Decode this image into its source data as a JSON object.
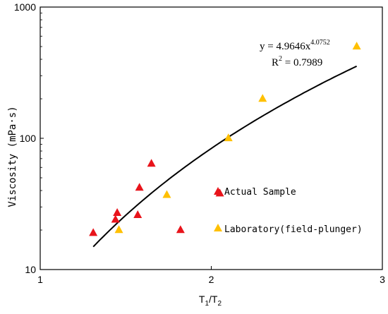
{
  "chart_data": {
    "type": "scatter",
    "xlabel": "T1/T2",
    "xlabel_main": "T",
    "xlabel_sub1": "1",
    "xlabel_slash": "/T",
    "xlabel_sub2": "2",
    "ylabel": "Viscosity (mPa·s)",
    "x_scale": "linear",
    "y_scale": "log",
    "xlim": [
      1,
      3
    ],
    "ylim": [
      10,
      1000
    ],
    "x_ticks": [
      "1",
      "2",
      "3"
    ],
    "y_ticks": [
      "10",
      "100",
      "1000"
    ],
    "grid": false,
    "legend_position": "center-right",
    "series": [
      {
        "name": "Actual Sample",
        "color": "#e8141b",
        "marker": "triangle",
        "points": [
          [
            1.31,
            19
          ],
          [
            1.44,
            24
          ],
          [
            1.45,
            27
          ],
          [
            1.57,
            26
          ],
          [
            1.58,
            42
          ],
          [
            1.65,
            64
          ],
          [
            1.82,
            20
          ],
          [
            2.05,
            38
          ]
        ]
      },
      {
        "name": "Laboratory(field-plunger)",
        "color": "#ffc000",
        "marker": "triangle",
        "points": [
          [
            1.46,
            20
          ],
          [
            1.74,
            37
          ],
          [
            2.1,
            100
          ],
          [
            2.3,
            200
          ],
          [
            2.85,
            500
          ]
        ]
      }
    ],
    "fit": {
      "coefficient": 4.9646,
      "exponent": 4.0752,
      "x_range": [
        1.31,
        2.85
      ],
      "equation_prefix": "y = 4.9646x",
      "equation_exponent": "4.0752",
      "r2_label": "R",
      "r2_power": "2",
      "r2_value": " = 0.7989"
    }
  }
}
